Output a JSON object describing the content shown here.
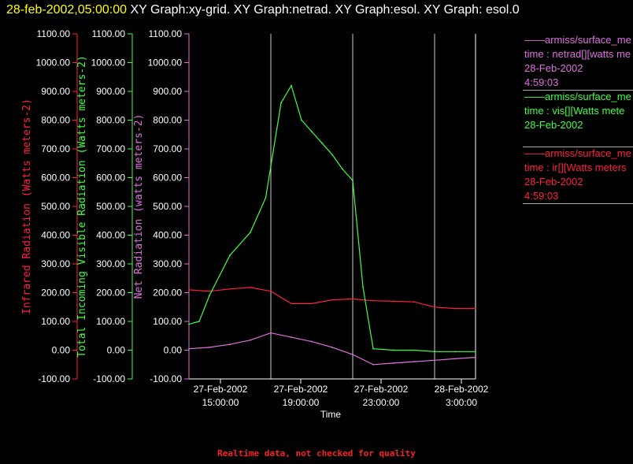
{
  "title": {
    "timestamp": "28-feb-2002,05:00:00",
    "text": "  XY Graph:xy-grid.  XY Graph:netrad.  XY Graph:esol.  XY Graph: esol.0"
  },
  "legend": [
    {
      "name": "——armiss/surface_me",
      "desc": "time : netrad[][watts me",
      "date": "28-Feb-2002",
      "time": "4:59:03",
      "color": "#e070e0"
    },
    {
      "name": "——armiss/surface_me",
      "desc": "time : vis[][Watts mete",
      "date": "28-Feb-2002",
      "time": "",
      "color": "#40ff40"
    },
    {
      "name": "——armiss/surface_me",
      "desc": "time : ir[][Watts meters",
      "date": "28-Feb-2002",
      "time": "4:59:03",
      "color": "#ff2040"
    }
  ],
  "footer": "Realtime data, not checked for quality",
  "chart_data": {
    "type": "line",
    "xlabel": "Time",
    "x_ticks": [
      {
        "line1": "27-Feb-2002",
        "line2": "15:00:00"
      },
      {
        "line1": "27-Feb-2002",
        "line2": "19:00:00"
      },
      {
        "line1": "27-Feb-2002",
        "line2": "23:00:00"
      },
      {
        "line1": "28-Feb-2002",
        "line2": "3:00:00"
      }
    ],
    "x_range": [
      "27-Feb-2002 15:00",
      "28-Feb-2002 05:00"
    ],
    "grid_x": [
      "27-Feb-2002 19:00",
      "27-Feb-2002 23:00",
      "28-Feb-2002 3:00"
    ],
    "ylim": [
      -100,
      1100
    ],
    "y_ticks": [
      "1100.00",
      "1000.00",
      "900.00",
      "800.00",
      "700.00",
      "600.00",
      "500.00",
      "400.00",
      "300.00",
      "200.00",
      "100.00",
      "0.00",
      "-100.00"
    ],
    "axes": [
      {
        "label": "Infrared Radiation (Watts meters-2)",
        "color": "#ff2040"
      },
      {
        "label": "Total Incoming Visible Radiation (Watts meters-2)",
        "color": "#40ff40"
      },
      {
        "label": "Net Radiation (watts meters-2)",
        "color": "#e070e0"
      }
    ],
    "series": [
      {
        "name": "ir",
        "color": "#ff2040",
        "x": [
          "27-Feb-2002 15:00",
          "27-Feb-2002 16:00",
          "27-Feb-2002 17:00",
          "27-Feb-2002 18:00",
          "27-Feb-2002 19:00",
          "27-Feb-2002 20:00",
          "27-Feb-2002 21:00",
          "27-Feb-2002 22:00",
          "27-Feb-2002 23:00",
          "28-Feb-2002 00:00",
          "28-Feb-2002 01:00",
          "28-Feb-2002 02:00",
          "28-Feb-2002 03:00",
          "28-Feb-2002 04:00",
          "28-Feb-2002 05:00"
        ],
        "values": [
          210,
          205,
          213,
          218,
          205,
          162,
          162,
          175,
          178,
          172,
          170,
          168,
          150,
          145,
          145
        ]
      },
      {
        "name": "vis",
        "color": "#40ff40",
        "x": [
          "27-Feb-2002 15:00",
          "27-Feb-2002 15:30",
          "27-Feb-2002 16:00",
          "27-Feb-2002 17:00",
          "27-Feb-2002 18:00",
          "27-Feb-2002 18:45",
          "27-Feb-2002 19:00",
          "27-Feb-2002 19:30",
          "27-Feb-2002 20:00",
          "27-Feb-2002 20:30",
          "27-Feb-2002 21:00",
          "27-Feb-2002 21:30",
          "27-Feb-2002 22:00",
          "27-Feb-2002 22:30",
          "27-Feb-2002 23:00",
          "27-Feb-2002 23:30",
          "28-Feb-2002 00:00",
          "28-Feb-2002 01:00",
          "28-Feb-2002 02:00",
          "28-Feb-2002 03:00",
          "28-Feb-2002 04:00",
          "28-Feb-2002 05:00"
        ],
        "values": [
          90,
          100,
          190,
          330,
          410,
          530,
          640,
          860,
          920,
          800,
          760,
          720,
          680,
          630,
          590,
          220,
          5,
          0,
          0,
          -5,
          -5,
          -5
        ]
      },
      {
        "name": "netrad",
        "color": "#e070e0",
        "x": [
          "27-Feb-2002 15:00",
          "27-Feb-2002 16:00",
          "27-Feb-2002 17:00",
          "27-Feb-2002 18:00",
          "27-Feb-2002 19:00",
          "27-Feb-2002 20:00",
          "27-Feb-2002 21:00",
          "27-Feb-2002 22:00",
          "27-Feb-2002 23:00",
          "28-Feb-2002 00:00",
          "28-Feb-2002 01:00",
          "28-Feb-2002 02:00",
          "28-Feb-2002 03:00",
          "28-Feb-2002 04:00",
          "28-Feb-2002 05:00"
        ],
        "values": [
          5,
          10,
          20,
          35,
          60,
          45,
          30,
          10,
          -15,
          -50,
          -45,
          -40,
          -35,
          -30,
          -25
        ]
      }
    ]
  }
}
